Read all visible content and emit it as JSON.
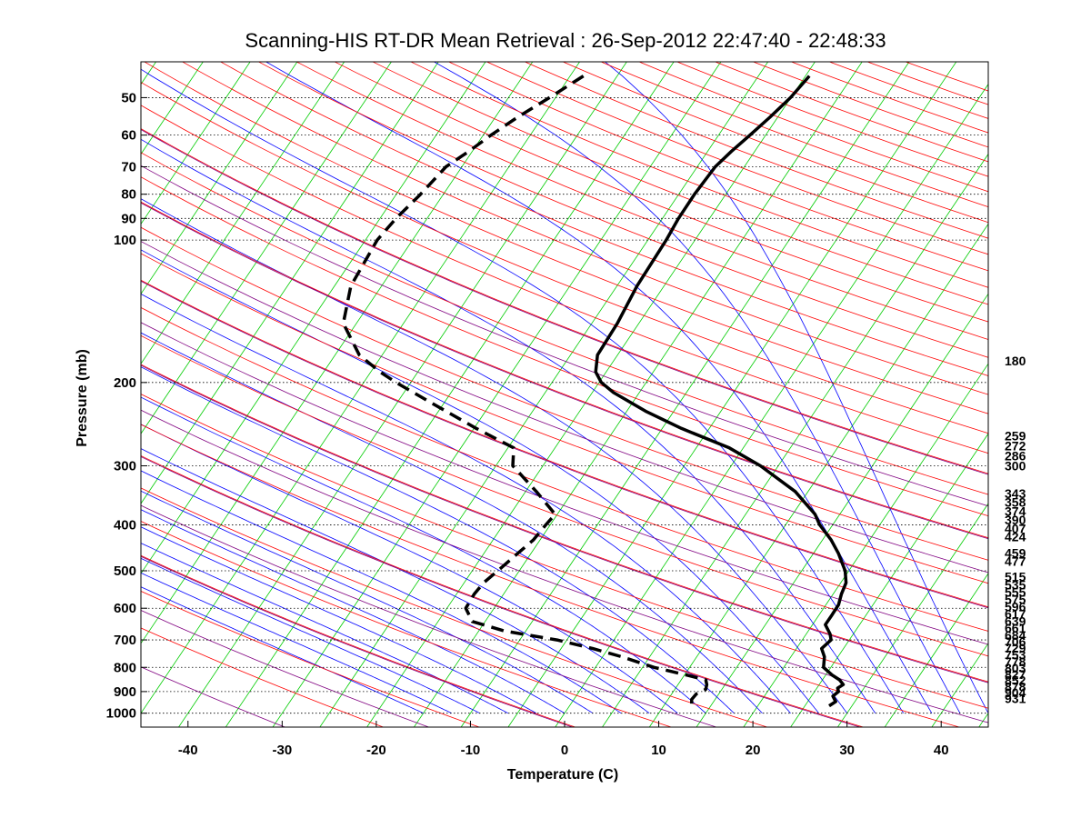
{
  "chart_data": {
    "type": "line",
    "title": "Scanning-HIS RT-DR Mean Retrieval : 26-Sep-2012 22:47:40 - 22:48:33",
    "xlabel": "Temperature (C)",
    "ylabel": "Pressure (mb)",
    "xlim": [
      -45,
      45
    ],
    "ylim": [
      1070,
      42
    ],
    "y_scale": "log",
    "grid": true,
    "x_ticks": [
      -40,
      -30,
      -20,
      -10,
      0,
      10,
      20,
      30,
      40
    ],
    "y_ticks": [
      50,
      60,
      70,
      80,
      90,
      100,
      200,
      300,
      400,
      500,
      600,
      700,
      800,
      900,
      1000
    ],
    "right_labels": [
      "180",
      "259",
      "272",
      "286",
      "300",
      "343",
      "358",
      "374",
      "390",
      "407",
      "424",
      "459",
      "477",
      "515",
      "535",
      "555",
      "575",
      "596",
      "617",
      "639",
      "661",
      "684",
      "706",
      "729",
      "753",
      "778",
      "803",
      "827",
      "852",
      "878",
      "904",
      "931"
    ],
    "background_line_colors": {
      "dry_adiabat": "#ff0000",
      "moist_adiabat": "#0000ff",
      "isotherm": "#00cc00",
      "purple_dry_adiabat": "#800080"
    },
    "series": [
      {
        "style": "solid",
        "color": "#000000",
        "points": [
          [
            26.0,
            45
          ],
          [
            24.0,
            50
          ],
          [
            21.8,
            55
          ],
          [
            19.7,
            60
          ],
          [
            17.7,
            65
          ],
          [
            16.0,
            70
          ],
          [
            13.8,
            80
          ],
          [
            12.1,
            90
          ],
          [
            10.8,
            100
          ],
          [
            7.7,
            125
          ],
          [
            5.6,
            150
          ],
          [
            3.5,
            175
          ],
          [
            3.3,
            190
          ],
          [
            3.9,
            200
          ],
          [
            5.2,
            210
          ],
          [
            8.6,
            230
          ],
          [
            12.4,
            250
          ],
          [
            17.5,
            275
          ],
          [
            20.8,
            300
          ],
          [
            24.5,
            340
          ],
          [
            26.6,
            380
          ],
          [
            27.1,
            400
          ],
          [
            28.3,
            430
          ],
          [
            29.1,
            460
          ],
          [
            29.8,
            500
          ],
          [
            29.9,
            530
          ],
          [
            29.4,
            560
          ],
          [
            29.1,
            590
          ],
          [
            28.4,
            620
          ],
          [
            27.7,
            650
          ],
          [
            28.2,
            680
          ],
          [
            28.3,
            700
          ],
          [
            27.3,
            730
          ],
          [
            27.6,
            760
          ],
          [
            27.5,
            800
          ],
          [
            28.4,
            830
          ],
          [
            29.2,
            850
          ],
          [
            29.6,
            870
          ],
          [
            29.0,
            885
          ],
          [
            29.1,
            900
          ],
          [
            28.5,
            920
          ],
          [
            28.8,
            945
          ],
          [
            28.1,
            965
          ]
        ]
      },
      {
        "style": "dashed",
        "color": "#000000",
        "points": [
          [
            2.0,
            45
          ],
          [
            -1.6,
            50
          ],
          [
            -5.0,
            55
          ],
          [
            -7.8,
            60
          ],
          [
            -10.2,
            65
          ],
          [
            -12.6,
            70
          ],
          [
            -15.3,
            80
          ],
          [
            -17.9,
            90
          ],
          [
            -19.9,
            100
          ],
          [
            -22.7,
            125
          ],
          [
            -23.5,
            150
          ],
          [
            -21.8,
            175
          ],
          [
            -19.6,
            190
          ],
          [
            -17.9,
            200
          ],
          [
            -14.3,
            220
          ],
          [
            -9.4,
            250
          ],
          [
            -5.4,
            275
          ],
          [
            -5.5,
            300
          ],
          [
            -3.0,
            340
          ],
          [
            -1.0,
            380
          ],
          [
            -2.0,
            400
          ],
          [
            -3.3,
            430
          ],
          [
            -5.0,
            460
          ],
          [
            -7.1,
            500
          ],
          [
            -8.6,
            530
          ],
          [
            -9.6,
            560
          ],
          [
            -10.5,
            600
          ],
          [
            -9.8,
            640
          ],
          [
            -6.4,
            670
          ],
          [
            -0.8,
            700
          ],
          [
            3.0,
            730
          ],
          [
            6.1,
            760
          ],
          [
            9.5,
            800
          ],
          [
            12.9,
            830
          ],
          [
            15.0,
            850
          ],
          [
            15.1,
            870
          ],
          [
            15.0,
            890
          ],
          [
            14.0,
            910
          ],
          [
            13.5,
            935
          ],
          [
            13.5,
            965
          ]
        ]
      }
    ]
  }
}
